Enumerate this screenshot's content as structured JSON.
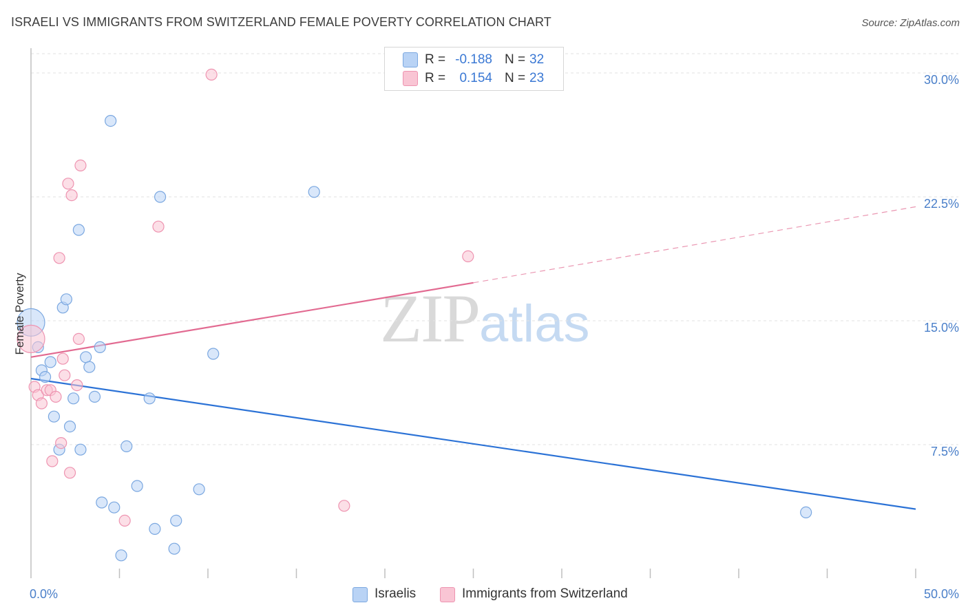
{
  "header": {
    "title": "ISRAELI VS IMMIGRANTS FROM SWITZERLAND FEMALE POVERTY CORRELATION CHART",
    "source": "Source: ZipAtlas.com"
  },
  "watermark": {
    "zip": "ZIP",
    "atlas": "atlas"
  },
  "legend": {
    "rows": [
      {
        "r_label": "R =",
        "r_value": "-0.188",
        "n_label": "N =",
        "n_value": "32"
      },
      {
        "r_label": "R =",
        "r_value": "0.154",
        "n_label": "N =",
        "n_value": "23"
      }
    ]
  },
  "bottom_legend": {
    "israelis": "Israelis",
    "swiss": "Immigrants from Switzerland"
  },
  "colors": {
    "israelis_fill": "#b9d3f5",
    "israelis_stroke": "#7aa7e0",
    "israelis_line": "#2b72d6",
    "swiss_fill": "#f9c5d4",
    "swiss_stroke": "#ee93b0",
    "swiss_line": "#e26a91",
    "tick_text": "#4a7fc9",
    "grid": "#e2e2e2"
  },
  "chart_data": {
    "type": "scatter",
    "title": "ISRAELI VS IMMIGRANTS FROM SWITZERLAND FEMALE POVERTY CORRELATION CHART",
    "xlabel": "",
    "ylabel": "Female Poverty",
    "xlim": [
      0,
      50
    ],
    "ylim": [
      0,
      31.5
    ],
    "x_tick_labels": [
      "0.0%",
      "50.0%"
    ],
    "y_ticks": [
      7.5,
      15.0,
      22.5,
      30.0
    ],
    "y_tick_labels": [
      "7.5%",
      "15.0%",
      "22.5%",
      "30.0%"
    ],
    "grid": "horizontal dashed",
    "legend_position": "top-center",
    "series": [
      {
        "name": "Israelis",
        "points": [
          [
            0.0,
            14.9
          ],
          [
            0.4,
            13.4
          ],
          [
            0.6,
            12.0
          ],
          [
            0.8,
            11.6
          ],
          [
            1.1,
            12.5
          ],
          [
            1.3,
            9.2
          ],
          [
            1.6,
            7.2
          ],
          [
            1.8,
            15.8
          ],
          [
            2.0,
            16.3
          ],
          [
            2.2,
            8.6
          ],
          [
            2.4,
            10.3
          ],
          [
            2.7,
            20.5
          ],
          [
            2.8,
            7.2
          ],
          [
            3.1,
            12.8
          ],
          [
            3.3,
            12.2
          ],
          [
            3.6,
            10.4
          ],
          [
            3.9,
            13.4
          ],
          [
            4.0,
            4.0
          ],
          [
            4.5,
            27.1
          ],
          [
            4.7,
            3.7
          ],
          [
            5.1,
            0.8
          ],
          [
            5.4,
            7.4
          ],
          [
            6.0,
            5.0
          ],
          [
            6.7,
            10.3
          ],
          [
            7.0,
            2.4
          ],
          [
            7.3,
            22.5
          ],
          [
            8.2,
            2.9
          ],
          [
            8.1,
            1.2
          ],
          [
            9.5,
            4.8
          ],
          [
            10.3,
            13.0
          ],
          [
            16.0,
            22.8
          ],
          [
            43.8,
            3.4
          ]
        ],
        "trend": {
          "x0": 0,
          "y0": 11.5,
          "x1": 50,
          "y1": 3.6
        }
      },
      {
        "name": "Immigrants from Switzerland",
        "points": [
          [
            0.0,
            13.9
          ],
          [
            0.2,
            11.0
          ],
          [
            0.4,
            10.5
          ],
          [
            0.6,
            10.0
          ],
          [
            0.9,
            10.8
          ],
          [
            1.1,
            10.8
          ],
          [
            1.4,
            10.4
          ],
          [
            1.6,
            18.8
          ],
          [
            1.7,
            7.6
          ],
          [
            1.2,
            6.5
          ],
          [
            1.8,
            12.7
          ],
          [
            1.9,
            11.7
          ],
          [
            2.1,
            23.3
          ],
          [
            2.2,
            5.8
          ],
          [
            2.3,
            22.6
          ],
          [
            2.6,
            11.1
          ],
          [
            2.7,
            13.9
          ],
          [
            2.8,
            24.4
          ],
          [
            5.3,
            2.9
          ],
          [
            7.2,
            20.7
          ],
          [
            10.2,
            29.9
          ],
          [
            17.7,
            3.8
          ],
          [
            24.7,
            18.9
          ]
        ],
        "trend": {
          "x0": 0,
          "y0": 12.8,
          "x1": 25,
          "y1": 17.3,
          "dashed_to_x": 50,
          "dashed_to_y": 21.9
        }
      }
    ]
  }
}
